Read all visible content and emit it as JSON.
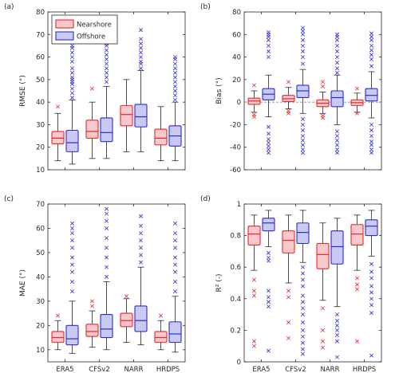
{
  "chart_data": [
    {
      "type": "box",
      "panel": "(a)",
      "ylabel": "RMSE (°)",
      "ylim": [
        10,
        80
      ],
      "yticks": [
        10,
        20,
        30,
        40,
        50,
        60,
        70,
        80
      ],
      "categories": [
        "ERA5",
        "CFSv2",
        "NARR",
        "HRDPS"
      ],
      "show_xticklabels": false,
      "legend": {
        "position": "top-left",
        "entries": [
          "Nearshore",
          "Offshore"
        ]
      },
      "refline": null,
      "series": [
        {
          "name": "Nearshore",
          "color": "#e8262b",
          "fill": "#f7c9cc",
          "boxes": [
            {
              "whislo": 14,
              "q1": 21.5,
              "med": 24,
              "q3": 27,
              "whishi": 35,
              "fliers": [
                38
              ]
            },
            {
              "whislo": 15,
              "q1": 24,
              "med": 27,
              "q3": 32,
              "whishi": 40,
              "fliers": [
                46
              ]
            },
            {
              "whislo": 18,
              "q1": 29.5,
              "med": 34.5,
              "q3": 38.5,
              "whishi": 50,
              "fliers": []
            },
            {
              "whislo": 14,
              "q1": 21,
              "med": 24,
              "q3": 28,
              "whishi": 38,
              "fliers": []
            }
          ]
        },
        {
          "name": "Offshore",
          "color": "#2b2bd6",
          "fill": "#c9c9f2",
          "boxes": [
            {
              "whislo": 12.5,
              "q1": 18,
              "med": 22,
              "q3": 27.5,
              "whishi": 41,
              "fliers": [
                42,
                44,
                46,
                48,
                49,
                50,
                51,
                53,
                55,
                58,
                60,
                62,
                64,
                65
              ]
            },
            {
              "whislo": 15,
              "q1": 22.5,
              "med": 26.5,
              "q3": 33,
              "whishi": 47,
              "fliers": [
                49,
                51,
                53,
                55,
                57,
                59,
                61,
                63,
                65,
                66,
                68,
                70,
                72
              ]
            },
            {
              "whislo": 18,
              "q1": 29,
              "med": 33.5,
              "q3": 39,
              "whishi": 54,
              "fliers": [
                55,
                57,
                58,
                60,
                62,
                64,
                66,
                68,
                72
              ]
            },
            {
              "whislo": 14,
              "q1": 20.5,
              "med": 25,
              "q3": 29.5,
              "whishi": 40,
              "fliers": [
                41,
                43,
                45,
                47,
                49,
                51,
                53,
                55,
                57,
                59,
                60
              ]
            }
          ]
        }
      ]
    },
    {
      "type": "box",
      "panel": "(b)",
      "ylabel": "Bias (°)",
      "ylim": [
        -60,
        80
      ],
      "yticks": [
        -60,
        -40,
        -20,
        0,
        20,
        40,
        60,
        80
      ],
      "categories": [
        "ERA5",
        "CFSv2",
        "NARR",
        "HRDPS"
      ],
      "show_xticklabels": false,
      "refline": 0,
      "series": [
        {
          "name": "Nearshore",
          "color": "#e8262b",
          "fill": "#f7c9cc",
          "boxes": [
            {
              "whislo": -9,
              "q1": -2,
              "med": 1,
              "q3": 3.5,
              "whishi": 10,
              "fliers": [
                15,
                -11,
                -13
              ]
            },
            {
              "whislo": -6,
              "q1": 0.5,
              "med": 3,
              "q3": 6,
              "whishi": 13,
              "fliers": [
                18,
                -8,
                -10
              ]
            },
            {
              "whislo": -10,
              "q1": -4,
              "med": -1,
              "q3": 2,
              "whishi": 9,
              "fliers": [
                18,
                14,
                -12,
                -14
              ]
            },
            {
              "whislo": -9,
              "q1": -3,
              "med": -0.5,
              "q3": 2,
              "whishi": 8,
              "fliers": [
                12,
                -10
              ]
            }
          ]
        },
        {
          "name": "Offshore",
          "color": "#2b2bd6",
          "fill": "#c9c9f2",
          "boxes": [
            {
              "whislo": -13,
              "q1": 2,
              "med": 7,
              "q3": 12,
              "whishi": 24,
              "fliers": [
                40,
                45,
                50,
                55,
                58,
                60,
                62,
                -22,
                -28,
                -33,
                -36,
                -39,
                -42,
                -45
              ]
            },
            {
              "whislo": -10,
              "q1": 4,
              "med": 10,
              "q3": 15,
              "whishi": 29,
              "fliers": [
                34,
                40,
                45,
                50,
                55,
                60,
                63,
                66,
                -15,
                -20,
                -25,
                -30,
                -34,
                -38,
                -42,
                -45
              ]
            },
            {
              "whislo": -20,
              "q1": -4,
              "med": 4,
              "q3": 10,
              "whishi": 24,
              "fliers": [
                26,
                30,
                35,
                40,
                45,
                50,
                55,
                58,
                60,
                -26,
                -30,
                -34,
                -38,
                -42,
                -45
              ]
            },
            {
              "whislo": -14,
              "q1": 1,
              "med": 6,
              "q3": 12,
              "whishi": 27,
              "fliers": [
                32,
                38,
                42,
                46,
                50,
                55,
                58,
                61,
                -20,
                -25,
                -30,
                -35,
                -38,
                -42,
                -45
              ]
            }
          ]
        }
      ]
    },
    {
      "type": "box",
      "panel": "(c)",
      "ylabel": "MAE (°)",
      "ylim": [
        5,
        70
      ],
      "yticks": [
        10,
        20,
        30,
        40,
        50,
        60,
        70
      ],
      "categories": [
        "ERA5",
        "CFSv2",
        "NARR",
        "HRDPS"
      ],
      "show_xticklabels": true,
      "refline": null,
      "series": [
        {
          "name": "Nearshore",
          "color": "#e8262b",
          "fill": "#f7c9cc",
          "boxes": [
            {
              "whislo": 10,
              "q1": 13,
              "med": 15,
              "q3": 17.5,
              "whishi": 22,
              "fliers": [
                24
              ]
            },
            {
              "whislo": 11,
              "q1": 15.5,
              "med": 17.5,
              "q3": 20.5,
              "whishi": 26,
              "fliers": [
                28,
                30
              ]
            },
            {
              "whislo": 13,
              "q1": 19.5,
              "med": 22,
              "q3": 25,
              "whishi": 31,
              "fliers": [
                32
              ]
            },
            {
              "whislo": 10,
              "q1": 13,
              "med": 15,
              "q3": 17.5,
              "whishi": 22,
              "fliers": [
                24
              ]
            }
          ]
        },
        {
          "name": "Offshore",
          "color": "#2b2bd6",
          "fill": "#c9c9f2",
          "boxes": [
            {
              "whislo": 8.5,
              "q1": 12,
              "med": 14.5,
              "q3": 20,
              "whishi": 30,
              "fliers": [
                34,
                38,
                42,
                45,
                48,
                52,
                55,
                58,
                60,
                62
              ]
            },
            {
              "whislo": 10,
              "q1": 15,
              "med": 18.5,
              "q3": 24.5,
              "whishi": 38,
              "fliers": [
                40,
                44,
                48,
                52,
                56,
                60,
                63,
                66,
                68
              ]
            },
            {
              "whislo": 12,
              "q1": 17.5,
              "med": 22,
              "q3": 28,
              "whishi": 44,
              "fliers": [
                46,
                49,
                52,
                55,
                58,
                61,
                65
              ]
            },
            {
              "whislo": 9,
              "q1": 13,
              "med": 16.5,
              "q3": 21.5,
              "whishi": 32,
              "fliers": [
                34,
                38,
                42,
                45,
                48,
                52,
                55,
                58,
                62
              ]
            }
          ]
        }
      ]
    },
    {
      "type": "box",
      "panel": "(d)",
      "ylabel": "R² (-)",
      "ylim": [
        0,
        1
      ],
      "yticks": [
        0,
        0.2,
        0.4,
        0.6,
        0.8,
        1
      ],
      "categories": [
        "ERA5",
        "CFSv2",
        "NARR",
        "HRDPS"
      ],
      "show_xticklabels": true,
      "refline": null,
      "series": [
        {
          "name": "Nearshore",
          "color": "#e8262b",
          "fill": "#f7c9cc",
          "boxes": [
            {
              "whislo": 0.58,
              "q1": 0.74,
              "med": 0.81,
              "q3": 0.86,
              "whishi": 0.93,
              "fliers": [
                0.52,
                0.45,
                0.42,
                0.13,
                0.1
              ]
            },
            {
              "whislo": 0.5,
              "q1": 0.69,
              "med": 0.77,
              "q3": 0.83,
              "whishi": 0.93,
              "fliers": [
                0.45,
                0.41,
                0.25,
                0.15
              ]
            },
            {
              "whislo": 0.39,
              "q1": 0.59,
              "med": 0.68,
              "q3": 0.75,
              "whishi": 0.88,
              "fliers": [
                0.34,
                0.2,
                0.13,
                0.09
              ]
            },
            {
              "whislo": 0.58,
              "q1": 0.74,
              "med": 0.81,
              "q3": 0.87,
              "whishi": 0.93,
              "fliers": [
                0.53,
                0.49,
                0.46,
                0.13
              ]
            }
          ]
        },
        {
          "name": "Offshore",
          "color": "#2b2bd6",
          "fill": "#c9c9f2",
          "boxes": [
            {
              "whislo": 0.73,
              "q1": 0.83,
              "med": 0.88,
              "q3": 0.91,
              "whishi": 0.96,
              "fliers": [
                0.69,
                0.66,
                0.64,
                0.45,
                0.41,
                0.38,
                0.35,
                0.07
              ]
            },
            {
              "whislo": 0.63,
              "q1": 0.75,
              "med": 0.82,
              "q3": 0.88,
              "whishi": 0.96,
              "fliers": [
                0.6,
                0.56,
                0.52,
                0.48,
                0.42,
                0.38,
                0.34,
                0.3,
                0.25,
                0.2,
                0.16,
                0.12,
                0.08,
                0.05
              ]
            },
            {
              "whislo": 0.35,
              "q1": 0.62,
              "med": 0.73,
              "q3": 0.83,
              "whishi": 0.91,
              "fliers": [
                0.3,
                0.26,
                0.23,
                0.2,
                0.17,
                0.13,
                0.03
              ]
            },
            {
              "whislo": 0.67,
              "q1": 0.8,
              "med": 0.86,
              "q3": 0.9,
              "whishi": 0.96,
              "fliers": [
                0.62,
                0.57,
                0.53,
                0.48,
                0.44,
                0.4,
                0.36,
                0.31,
                0.04
              ]
            }
          ]
        }
      ]
    }
  ]
}
